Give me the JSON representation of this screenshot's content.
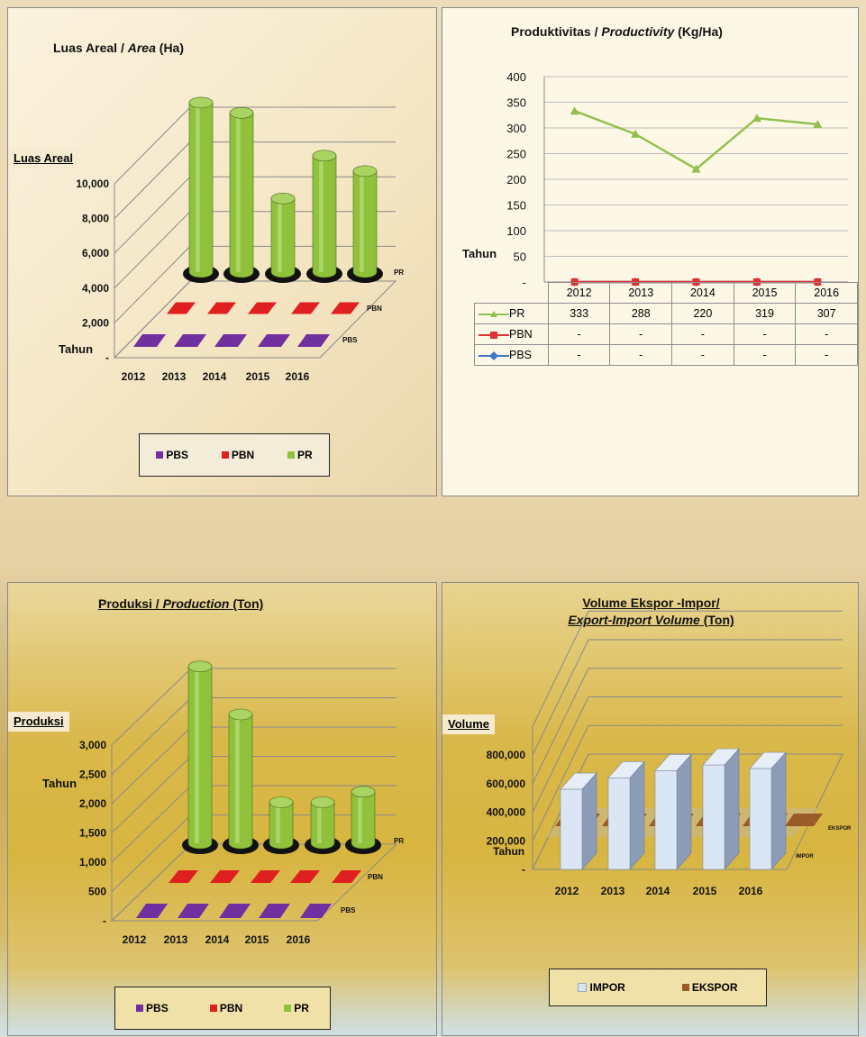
{
  "colors": {
    "pbs": "#7030a0",
    "pbn": "#e02020",
    "pr": "#8fc23a",
    "impor": "#dbe6f5",
    "ekspor": "#9a5a2a",
    "line_pr": "#92c050",
    "line_pbn": "#e03030",
    "line_pbs": "#3b78c4"
  },
  "area": {
    "title_part1": "Luas Areal / ",
    "title_italic": "Area",
    "title_part2": " (Ha)",
    "y_title": "Luas Areal",
    "x_title": "Tahun",
    "y_ticks": [
      "10,000",
      "8,000",
      "6,000",
      "4,000",
      "2,000",
      "-"
    ],
    "depth_labels": [
      "PR",
      "PBN",
      "PBS"
    ],
    "legend": [
      "PBS",
      "PBN",
      "PR"
    ]
  },
  "productivity": {
    "title_part1": "Produktivitas / ",
    "title_italic": "Productivity",
    "title_part2": " (Kg/Ha)",
    "y_ticks": [
      "400",
      "350",
      "300",
      "250",
      "200",
      "150",
      "100",
      "50",
      "-"
    ],
    "x_title": "Tahun",
    "table_rows": [
      {
        "label": "PR",
        "values": [
          "333",
          "288",
          "220",
          "319",
          "307"
        ]
      },
      {
        "label": "PBN",
        "values": [
          "-",
          "-",
          "-",
          "-",
          "-"
        ]
      },
      {
        "label": "PBS",
        "values": [
          "-",
          "-",
          "-",
          "-",
          "-"
        ]
      }
    ]
  },
  "production": {
    "title_part1": "Produksi / ",
    "title_italic": "Production",
    "title_part2": " (Ton)",
    "y_title": "Produksi",
    "x_title": "Tahun",
    "y_ticks": [
      "3,000",
      "2,500",
      "2,000",
      "1,500",
      "1,000",
      "500",
      "-"
    ],
    "depth_labels": [
      "PR",
      "PBN",
      "PBS"
    ],
    "legend": [
      "PBS",
      "PBN",
      "PR"
    ]
  },
  "trade": {
    "title_line1": "Volume Ekspor -Impor/",
    "title_line2_italic": "Export-Import Volume",
    "title_line2_rest": " (Ton)",
    "y_title": "Volume",
    "x_title": "Tahun",
    "y_ticks": [
      "800,000",
      "600,000",
      "400,000",
      "200,000",
      "-"
    ],
    "depth_labels": [
      "EKSPOR",
      "IMPOR"
    ],
    "legend": [
      "IMPOR",
      "EKSPOR"
    ]
  },
  "chart_data": [
    {
      "type": "bar",
      "title": "Luas Areal / Area (Ha)",
      "categories": [
        "2012",
        "2013",
        "2014",
        "2015",
        "2016"
      ],
      "ylabel": "Luas Areal",
      "xlabel": "Tahun",
      "ylim": [
        0,
        10000
      ],
      "series": [
        {
          "name": "PBS",
          "values": [
            0,
            0,
            0,
            0,
            0
          ]
        },
        {
          "name": "PBN",
          "values": [
            0,
            0,
            0,
            0,
            0
          ]
        },
        {
          "name": "PR",
          "values": [
            9900,
            9300,
            4300,
            6800,
            5900
          ]
        }
      ],
      "legend": "bottom"
    },
    {
      "type": "line",
      "title": "Produktivitas / Productivity (Kg/Ha)",
      "x": [
        "2012",
        "2013",
        "2014",
        "2015",
        "2016"
      ],
      "xlabel": "Tahun",
      "ylim": [
        0,
        400
      ],
      "series": [
        {
          "name": "PR",
          "values": [
            333,
            288,
            220,
            319,
            307
          ]
        },
        {
          "name": "PBN",
          "values": [
            0,
            0,
            0,
            0,
            0
          ]
        },
        {
          "name": "PBS",
          "values": [
            0,
            0,
            0,
            0,
            0
          ]
        }
      ]
    },
    {
      "type": "bar",
      "title": "Produksi / Production (Ton)",
      "categories": [
        "2012",
        "2013",
        "2014",
        "2015",
        "2016"
      ],
      "ylabel": "Produksi",
      "xlabel": "Tahun",
      "ylim": [
        0,
        3000
      ],
      "series": [
        {
          "name": "PBS",
          "values": [
            0,
            0,
            0,
            0,
            0
          ]
        },
        {
          "name": "PBN",
          "values": [
            0,
            0,
            0,
            0,
            0
          ]
        },
        {
          "name": "PR",
          "values": [
            3020,
            2200,
            700,
            700,
            880
          ]
        }
      ],
      "legend": "bottom"
    },
    {
      "type": "bar",
      "title": "Volume Ekspor -Impor/ Export-Import Volume (Ton)",
      "categories": [
        "2012",
        "2013",
        "2014",
        "2015",
        "2016"
      ],
      "ylabel": "Volume",
      "xlabel": "Tahun",
      "ylim": [
        0,
        800000
      ],
      "series": [
        {
          "name": "IMPOR",
          "values": [
            560000,
            640000,
            690000,
            730000,
            705000
          ]
        },
        {
          "name": "EKSPOR",
          "values": [
            0,
            0,
            0,
            0,
            0
          ]
        }
      ],
      "legend": "bottom"
    }
  ]
}
